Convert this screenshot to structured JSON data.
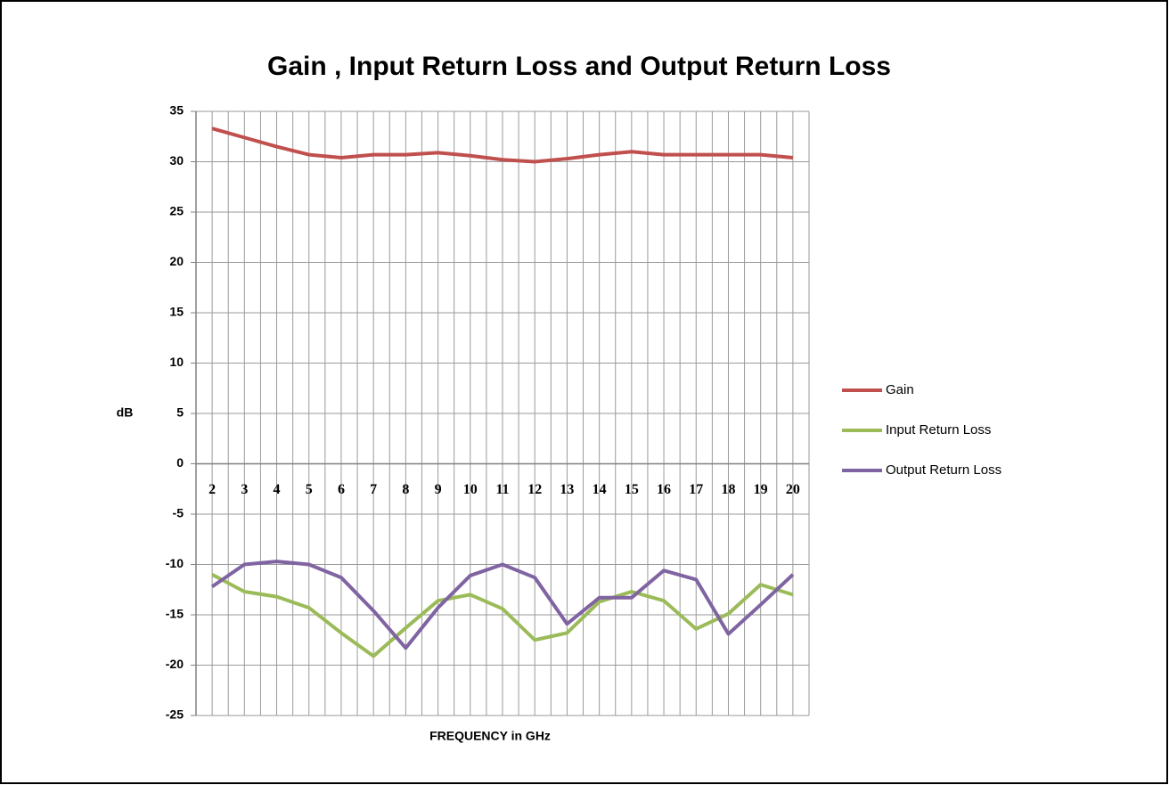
{
  "chart_data": {
    "type": "line",
    "title": "Gain , Input Return Loss and Output Return Loss",
    "y_label": "dB",
    "x_label": "FREQUENCY in GHz",
    "categories": [
      "2",
      "3",
      "4",
      "5",
      "6",
      "7",
      "8",
      "9",
      "10",
      "11",
      "12",
      "13",
      "14",
      "15",
      "16",
      "17",
      "18",
      "19",
      "20"
    ],
    "series": [
      {
        "name": "Gain",
        "color": "#c0504d",
        "values": [
          33.3,
          32.4,
          31.5,
          30.7,
          30.4,
          30.7,
          30.7,
          30.9,
          30.6,
          30.2,
          30.0,
          30.3,
          30.7,
          31.0,
          30.7,
          30.7,
          30.7,
          30.7,
          30.4
        ]
      },
      {
        "name": "Input Return Loss",
        "color": "#9bbb59",
        "values": [
          -11,
          -12.7,
          -13.2,
          -14.3,
          -16.8,
          -19.1,
          -16.3,
          -13.6,
          -13.0,
          -14.4,
          -17.5,
          -16.8,
          -13.7,
          -12.7,
          -13.6,
          -16.4,
          -14.9,
          -12.0,
          -13.0
        ]
      },
      {
        "name": "Output Return Loss",
        "color": "#8064a2",
        "values": [
          -12.2,
          -10.0,
          -9.7,
          -10.0,
          -11.3,
          -14.6,
          -18.3,
          -14.3,
          -11.1,
          -10.0,
          -11.3,
          -15.9,
          -13.3,
          -13.3,
          -10.6,
          -11.5,
          -16.9,
          -14.0,
          -11.0
        ]
      }
    ],
    "ylim": [
      -25,
      35
    ],
    "yticks": [
      -25,
      -20,
      -15,
      -10,
      -5,
      0,
      5,
      10,
      15,
      20,
      25,
      30,
      35
    ],
    "grid": true,
    "legend": "right"
  }
}
